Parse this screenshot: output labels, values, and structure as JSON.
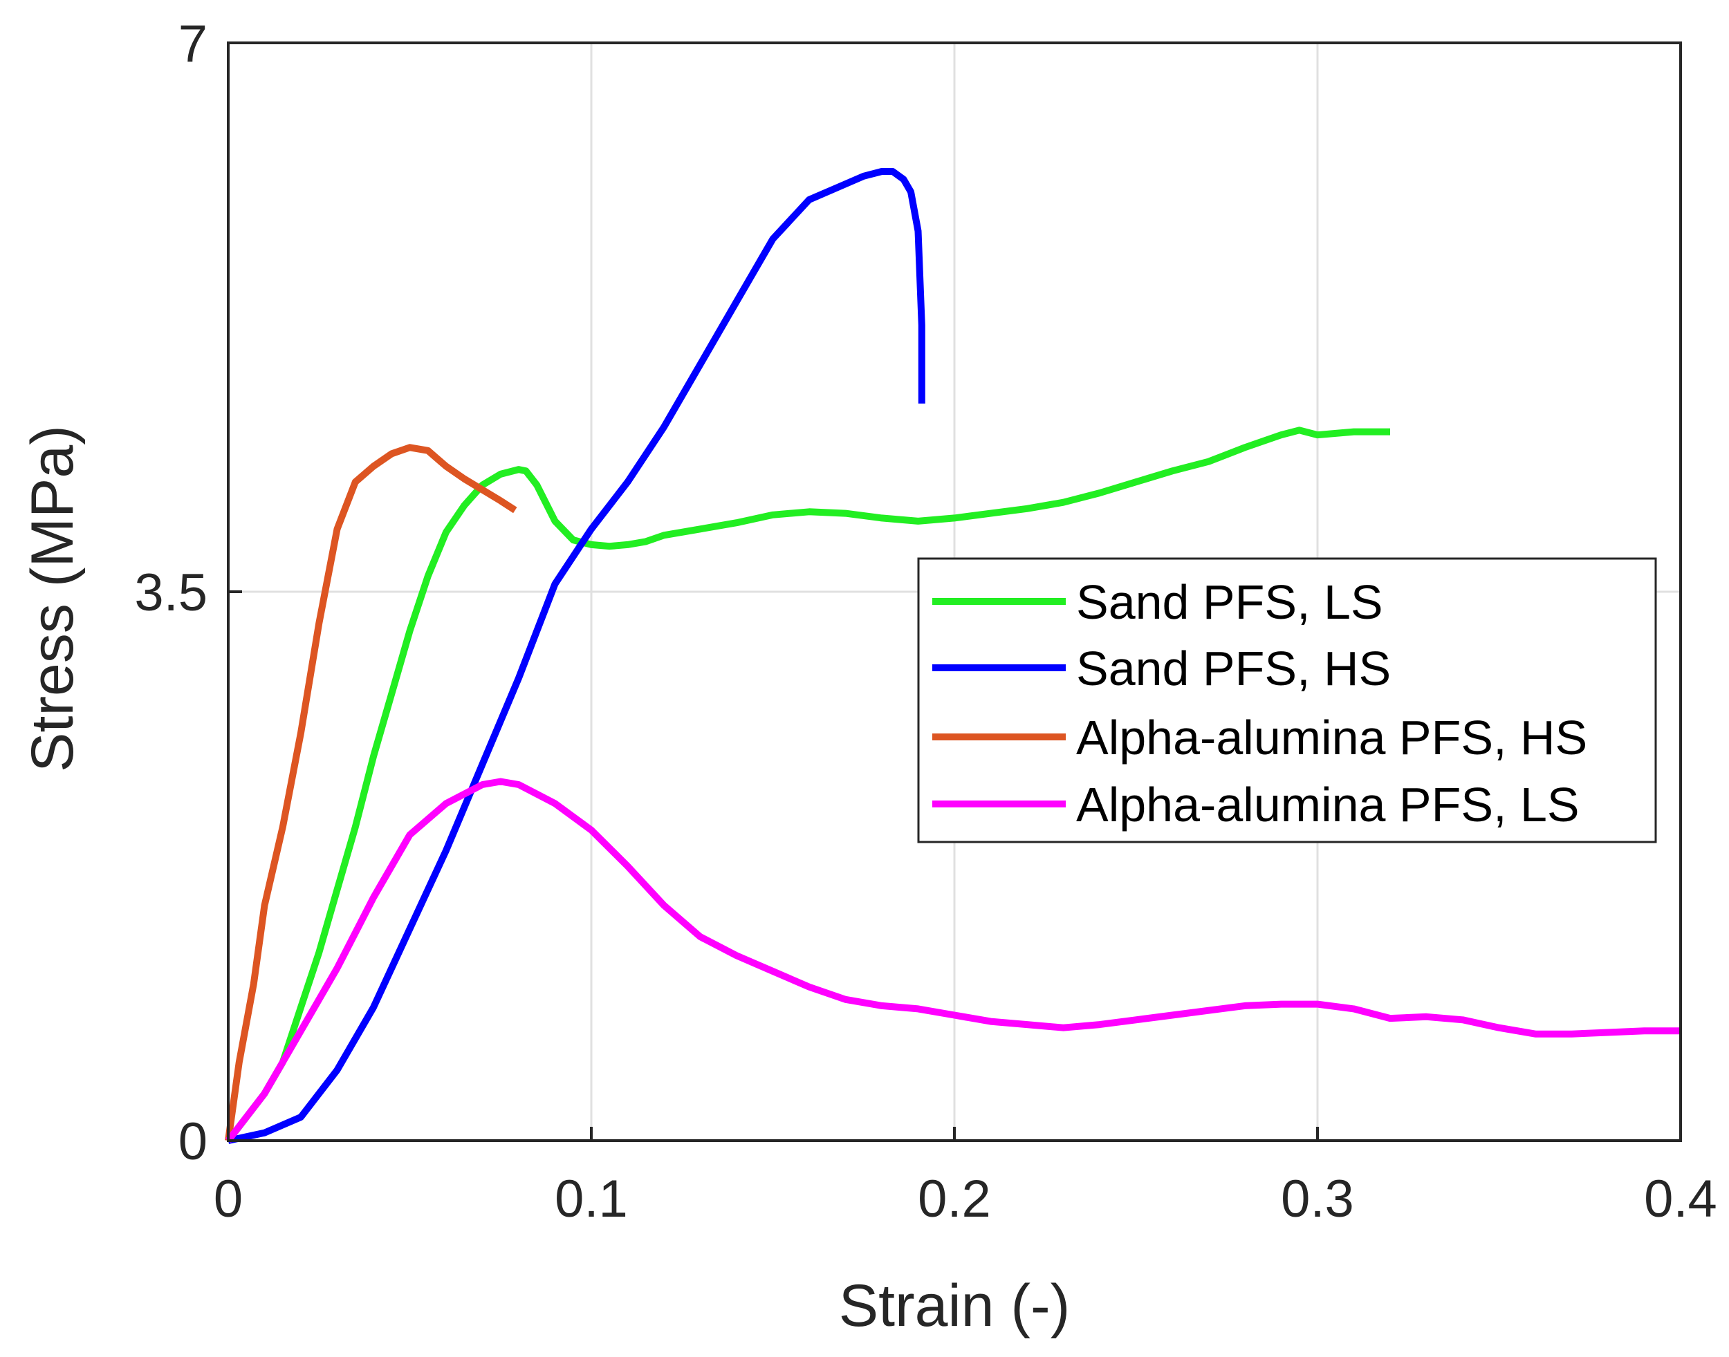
{
  "chart_data": {
    "type": "line",
    "title": "",
    "xlabel": "Strain (-)",
    "ylabel": "Stress (MPa)",
    "xlim": [
      0,
      0.4
    ],
    "ylim": [
      0,
      7
    ],
    "xticks": [
      0,
      0.1,
      0.2,
      0.3,
      0.4
    ],
    "xtick_labels": [
      "0",
      "0.1",
      "0.2",
      "0.3",
      "0.4"
    ],
    "yticks": [
      0,
      3.5,
      7
    ],
    "ytick_labels": [
      "0",
      "3.5",
      "7"
    ],
    "grid": true,
    "legend_position": "right",
    "series": [
      {
        "name": "Sand PFS, LS",
        "color": "#22ee22",
        "x": [
          0,
          0.005,
          0.01,
          0.015,
          0.02,
          0.025,
          0.03,
          0.035,
          0.04,
          0.045,
          0.05,
          0.055,
          0.06,
          0.065,
          0.07,
          0.075,
          0.08,
          0.082,
          0.085,
          0.09,
          0.095,
          0.1,
          0.105,
          0.11,
          0.115,
          0.12,
          0.13,
          0.14,
          0.15,
          0.16,
          0.17,
          0.18,
          0.19,
          0.2,
          0.21,
          0.22,
          0.23,
          0.24,
          0.25,
          0.26,
          0.27,
          0.28,
          0.29,
          0.295,
          0.3,
          0.31,
          0.32
        ],
        "y": [
          0,
          0.15,
          0.3,
          0.5,
          0.85,
          1.2,
          1.6,
          2.0,
          2.45,
          2.85,
          3.25,
          3.6,
          3.88,
          4.05,
          4.18,
          4.25,
          4.28,
          4.27,
          4.18,
          3.95,
          3.83,
          3.8,
          3.79,
          3.8,
          3.82,
          3.86,
          3.9,
          3.94,
          3.99,
          4.01,
          4.0,
          3.97,
          3.95,
          3.97,
          4.0,
          4.03,
          4.07,
          4.13,
          4.2,
          4.27,
          4.33,
          4.42,
          4.5,
          4.53,
          4.5,
          4.52,
          4.52
        ]
      },
      {
        "name": "Sand PFS, HS",
        "color": "#0000ff",
        "x": [
          0,
          0.01,
          0.02,
          0.03,
          0.04,
          0.05,
          0.06,
          0.07,
          0.08,
          0.09,
          0.1,
          0.11,
          0.12,
          0.13,
          0.14,
          0.15,
          0.16,
          0.17,
          0.175,
          0.18,
          0.183,
          0.186,
          0.188,
          0.19,
          0.191,
          0.191
        ],
        "y": [
          0,
          0.05,
          0.15,
          0.45,
          0.85,
          1.35,
          1.85,
          2.4,
          2.95,
          3.55,
          3.9,
          4.2,
          4.55,
          4.95,
          5.35,
          5.75,
          6.0,
          6.1,
          6.15,
          6.18,
          6.18,
          6.13,
          6.05,
          5.8,
          5.2,
          4.7
        ]
      },
      {
        "name": "Alpha-alumina PFS, HS",
        "color": "#dd5522",
        "x": [
          0,
          0.003,
          0.007,
          0.01,
          0.015,
          0.02,
          0.025,
          0.03,
          0.035,
          0.04,
          0.045,
          0.05,
          0.055,
          0.06,
          0.065,
          0.07,
          0.075,
          0.079
        ],
        "y": [
          0,
          0.5,
          1.0,
          1.5,
          2.0,
          2.6,
          3.3,
          3.9,
          4.2,
          4.3,
          4.38,
          4.42,
          4.4,
          4.3,
          4.22,
          4.15,
          4.08,
          4.02
        ]
      },
      {
        "name": "Alpha-alumina PFS, LS",
        "color": "#ff00ff",
        "x": [
          0,
          0.01,
          0.02,
          0.03,
          0.04,
          0.05,
          0.06,
          0.07,
          0.075,
          0.08,
          0.09,
          0.1,
          0.11,
          0.12,
          0.13,
          0.14,
          0.15,
          0.16,
          0.17,
          0.18,
          0.19,
          0.2,
          0.21,
          0.22,
          0.23,
          0.24,
          0.25,
          0.26,
          0.27,
          0.28,
          0.29,
          0.3,
          0.31,
          0.32,
          0.33,
          0.34,
          0.35,
          0.36,
          0.37,
          0.38,
          0.39,
          0.4
        ],
        "y": [
          0,
          0.3,
          0.7,
          1.1,
          1.55,
          1.95,
          2.15,
          2.27,
          2.29,
          2.27,
          2.15,
          1.98,
          1.75,
          1.5,
          1.3,
          1.18,
          1.08,
          0.98,
          0.9,
          0.86,
          0.84,
          0.8,
          0.76,
          0.74,
          0.72,
          0.74,
          0.77,
          0.8,
          0.83,
          0.86,
          0.87,
          0.87,
          0.84,
          0.78,
          0.79,
          0.77,
          0.72,
          0.68,
          0.68,
          0.69,
          0.7,
          0.7
        ]
      }
    ]
  }
}
